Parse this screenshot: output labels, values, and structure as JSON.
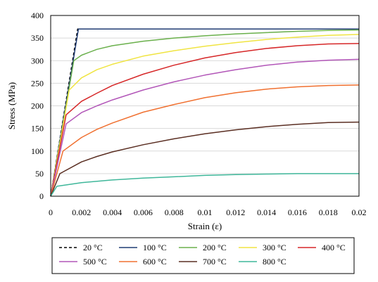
{
  "chart_data": {
    "type": "line",
    "xlabel": "Strain (ε)",
    "ylabel": "Stress (MPa)",
    "xlim": [
      0,
      0.02
    ],
    "ylim": [
      0,
      400
    ],
    "x_ticks": [
      0,
      0.002,
      0.004,
      0.006,
      0.008,
      0.01,
      0.012,
      0.014,
      0.016,
      0.018,
      0.02
    ],
    "x_tick_labels": [
      "0",
      "0.002",
      "0.004",
      "0.006",
      "0.008",
      "0.01",
      "0.012",
      "0.014",
      "0.016",
      "0.018",
      "0.02"
    ],
    "y_ticks": [
      0,
      50,
      100,
      150,
      200,
      250,
      300,
      350,
      400
    ],
    "y_tick_labels": [
      "0",
      "50",
      "100",
      "150",
      "200",
      "250",
      "300",
      "350",
      "400"
    ],
    "grid": "horizontal",
    "legend_position": "bottom",
    "series": [
      {
        "name": "20 °C",
        "color": "#000000",
        "dash": true,
        "x": [
          0,
          0.00175,
          0.02
        ],
        "y": [
          0,
          370,
          370
        ]
      },
      {
        "name": "100 °C",
        "color": "#1f3b73",
        "dash": false,
        "x": [
          0,
          0.0018,
          0.02
        ],
        "y": [
          0,
          370,
          370
        ]
      },
      {
        "name": "200 °C",
        "color": "#6ab04c",
        "dash": false,
        "x": [
          0,
          0.0015,
          0.002,
          0.003,
          0.004,
          0.006,
          0.008,
          0.01,
          0.012,
          0.014,
          0.016,
          0.018,
          0.02
        ],
        "y": [
          0,
          300,
          312,
          325,
          333,
          343,
          350,
          355,
          359,
          362,
          365,
          367,
          368
        ]
      },
      {
        "name": "300 °C",
        "color": "#f0e442",
        "dash": false,
        "x": [
          0,
          0.0012,
          0.002,
          0.003,
          0.004,
          0.006,
          0.008,
          0.01,
          0.012,
          0.014,
          0.016,
          0.018,
          0.02
        ],
        "y": [
          0,
          235,
          262,
          280,
          292,
          310,
          322,
          332,
          340,
          347,
          352,
          356,
          358
        ]
      },
      {
        "name": "400 °C",
        "color": "#d62728",
        "dash": false,
        "x": [
          0,
          0.001,
          0.002,
          0.003,
          0.004,
          0.006,
          0.008,
          0.01,
          0.012,
          0.014,
          0.016,
          0.018,
          0.02
        ],
        "y": [
          0,
          180,
          210,
          228,
          245,
          270,
          290,
          306,
          318,
          327,
          333,
          337,
          338
        ]
      },
      {
        "name": "500 °C",
        "color": "#b256b8",
        "dash": false,
        "x": [
          0,
          0.001,
          0.002,
          0.003,
          0.004,
          0.006,
          0.008,
          0.01,
          0.012,
          0.014,
          0.016,
          0.018,
          0.02
        ],
        "y": [
          0,
          160,
          185,
          200,
          213,
          235,
          253,
          268,
          280,
          290,
          297,
          301,
          303
        ]
      },
      {
        "name": "600 °C",
        "color": "#f07030",
        "dash": false,
        "x": [
          0,
          0.0008,
          0.002,
          0.003,
          0.004,
          0.006,
          0.008,
          0.01,
          0.012,
          0.014,
          0.016,
          0.018,
          0.02
        ],
        "y": [
          0,
          100,
          130,
          148,
          162,
          186,
          203,
          218,
          229,
          237,
          242,
          245,
          246
        ]
      },
      {
        "name": "700 °C",
        "color": "#5a2e22",
        "dash": false,
        "x": [
          0,
          0.0006,
          0.002,
          0.003,
          0.004,
          0.006,
          0.008,
          0.01,
          0.012,
          0.014,
          0.016,
          0.018,
          0.02
        ],
        "y": [
          0,
          50,
          76,
          88,
          98,
          114,
          127,
          138,
          147,
          154,
          159,
          163,
          164
        ]
      },
      {
        "name": "800 °C",
        "color": "#3fb79a",
        "dash": false,
        "x": [
          0,
          0.0004,
          0.002,
          0.004,
          0.006,
          0.008,
          0.01,
          0.012,
          0.014,
          0.016,
          0.018,
          0.02
        ],
        "y": [
          0,
          22,
          30,
          36,
          40,
          43,
          46,
          48,
          49,
          50,
          50,
          50
        ]
      }
    ]
  }
}
